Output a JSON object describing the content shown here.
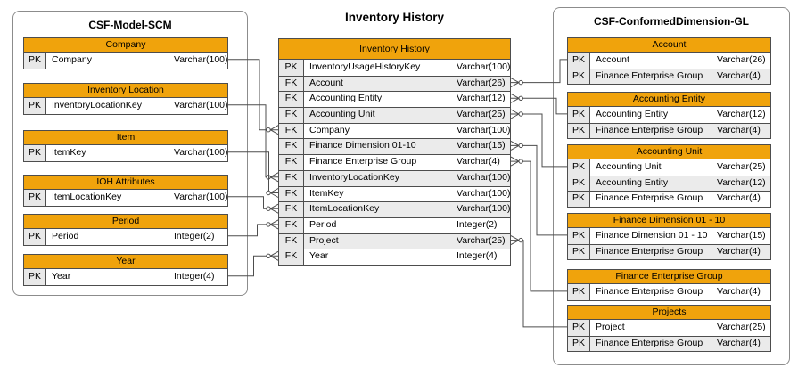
{
  "diagram_title": "Inventory History",
  "colors": {
    "header_accent": "#F0A30C",
    "row_alternate": "#EBEBEB",
    "key_column": "#E8E8E8",
    "wire": "#4d4d4d",
    "panel_border": "#8c8c8c"
  },
  "left_panel": {
    "title": "CSF-Model-SCM",
    "tables": [
      {
        "title": "Company",
        "rows": [
          {
            "key": "PK",
            "name": "Company",
            "type": "Varchar(100)"
          }
        ]
      },
      {
        "title": "Inventory Location",
        "rows": [
          {
            "key": "PK",
            "name": "InventoryLocationKey",
            "type": "Varchar(100)"
          }
        ]
      },
      {
        "title": "Item",
        "rows": [
          {
            "key": "PK",
            "name": "ItemKey",
            "type": "Varchar(100)"
          }
        ]
      },
      {
        "title": "IOH Attributes",
        "rows": [
          {
            "key": "PK",
            "name": "ItemLocationKey",
            "type": "Varchar(100)"
          }
        ]
      },
      {
        "title": "Period",
        "rows": [
          {
            "key": "PK",
            "name": "Period",
            "type": "Integer(2)"
          }
        ]
      },
      {
        "title": "Year",
        "rows": [
          {
            "key": "PK",
            "name": "Year",
            "type": "Integer(4)"
          }
        ]
      }
    ]
  },
  "fact_table": {
    "title": "Inventory History",
    "rows": [
      {
        "key": "PK",
        "name": "InventoryUsageHistoryKey",
        "type": "Varchar(100)"
      },
      {
        "key": "FK",
        "name": "Account",
        "type": "Varchar(26)"
      },
      {
        "key": "FK",
        "name": "Accounting Entity",
        "type": "Varchar(12)"
      },
      {
        "key": "FK",
        "name": "Accounting Unit",
        "type": "Varchar(25)"
      },
      {
        "key": "FK",
        "name": "Company",
        "type": "Varchar(100)"
      },
      {
        "key": "FK",
        "name": "Finance Dimension 01-10",
        "type": "Varchar(15)"
      },
      {
        "key": "FK",
        "name": "Finance Enterprise Group",
        "type": "Varchar(4)"
      },
      {
        "key": "FK",
        "name": "InventoryLocationKey",
        "type": "Varchar(100)"
      },
      {
        "key": "FK",
        "name": "ItemKey",
        "type": "Varchar(100)"
      },
      {
        "key": "FK",
        "name": "ItemLocationKey",
        "type": "Varchar(100)"
      },
      {
        "key": "FK",
        "name": "Period",
        "type": "Integer(2)"
      },
      {
        "key": "FK",
        "name": "Project",
        "type": "Varchar(25)"
      },
      {
        "key": "FK",
        "name": "Year",
        "type": "Integer(4)"
      }
    ]
  },
  "right_panel": {
    "title": "CSF-ConformedDimension-GL",
    "tables": [
      {
        "title": "Account",
        "rows": [
          {
            "key": "PK",
            "name": "Account",
            "type": "Varchar(26)"
          },
          {
            "key": "PK",
            "name": "Finance Enterprise Group",
            "type": "Varchar(4)"
          }
        ]
      },
      {
        "title": "Accounting Entity",
        "rows": [
          {
            "key": "PK",
            "name": "Accounting Entity",
            "type": "Varchar(12)"
          },
          {
            "key": "PK",
            "name": "Finance Enterprise Group",
            "type": "Varchar(4)"
          }
        ]
      },
      {
        "title": "Accounting Unit",
        "rows": [
          {
            "key": "PK",
            "name": "Accounting Unit",
            "type": "Varchar(25)"
          },
          {
            "key": "PK",
            "name": "Accounting Entity",
            "type": "Varchar(12)"
          },
          {
            "key": "PK",
            "name": "Finance Enterprise Group",
            "type": "Varchar(4)"
          }
        ]
      },
      {
        "title": "Finance Dimension 01 - 10",
        "rows": [
          {
            "key": "PK",
            "name": "Finance Dimension 01 - 10",
            "type": "Varchar(15)"
          },
          {
            "key": "PK",
            "name": "Finance Enterprise Group",
            "type": "Varchar(4)"
          }
        ]
      },
      {
        "title": "Finance Enterprise Group",
        "rows": [
          {
            "key": "PK",
            "name": "Finance Enterprise Group",
            "type": "Varchar(4)"
          }
        ]
      },
      {
        "title": "Projects",
        "rows": [
          {
            "key": "PK",
            "name": "Project",
            "type": "Varchar(25)"
          },
          {
            "key": "PK",
            "name": "Finance Enterprise Group",
            "type": "Varchar(4)"
          }
        ]
      }
    ]
  },
  "relationships": [
    {
      "from": "Company",
      "to": "Inventory History.Company"
    },
    {
      "from": "Inventory Location",
      "to": "Inventory History.InventoryLocationKey"
    },
    {
      "from": "Item",
      "to": "Inventory History.ItemKey"
    },
    {
      "from": "IOH Attributes",
      "to": "Inventory History.ItemLocationKey"
    },
    {
      "from": "Period",
      "to": "Inventory History.Period"
    },
    {
      "from": "Year",
      "to": "Inventory History.Year"
    },
    {
      "from": "Inventory History.Account",
      "to": "Account"
    },
    {
      "from": "Inventory History.Accounting Entity",
      "to": "Accounting Entity"
    },
    {
      "from": "Inventory History.Accounting Unit",
      "to": "Accounting Unit"
    },
    {
      "from": "Inventory History.Finance Dimension 01-10",
      "to": "Finance Dimension 01 - 10"
    },
    {
      "from": "Inventory History.Finance Enterprise Group",
      "to": "Finance Enterprise Group"
    },
    {
      "from": "Inventory History.Project",
      "to": "Projects"
    }
  ]
}
